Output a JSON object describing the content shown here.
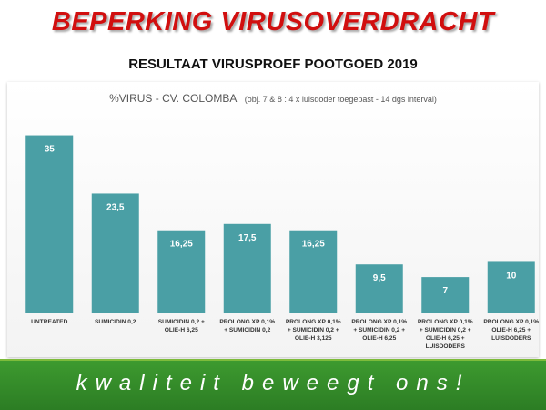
{
  "header": {
    "title": "BEPERKING VIRUSOVERDRACHT",
    "subtitle": "RESULTAAT VIRUSPROEF POOTGOED 2019"
  },
  "footer": {
    "slogan": "kwaliteit beweegt ons!"
  },
  "colors": {
    "title": "#d10f0f",
    "bar": "#4a9fa5",
    "footer_green": "#3d9a2f"
  },
  "chart_data": {
    "type": "bar",
    "title": "%VIRUS - CV. COLOMBA",
    "title_note": "(obj. 7 & 8 : 4 x luisdoder toegepast - 14 dgs interval)",
    "xlabel": "",
    "ylabel": "",
    "ylim": [
      0,
      36
    ],
    "grid": false,
    "categories": [
      [
        "UNTREATED"
      ],
      [
        "SUMICIDIN 0,2"
      ],
      [
        "SUMICIDIN 0,2 +",
        "OLIE-H 6,25"
      ],
      [
        "PROLONG XP 0,1%",
        "+ SUMICIDIN 0,2"
      ],
      [
        "PROLONG XP 0,1%",
        "+ SUMICIDIN 0,2 +",
        "OLIE-H 3,125"
      ],
      [
        "PROLONG XP 0,1%",
        "+ SUMICIDIN 0,2 +",
        "OLIE-H 6,25"
      ],
      [
        "PROLONG XP 0,1%",
        "+ SUMICIDIN 0,2 +",
        "OLIE-H 6,25 +",
        "LUISDODERS"
      ],
      [
        "PROLONG XP 0,1%",
        "OLIE-H 6,25 +",
        "LUISDODERS"
      ]
    ],
    "values": [
      35,
      23.5,
      16.25,
      17.5,
      16.25,
      9.5,
      7,
      10
    ],
    "value_labels": [
      "35",
      "23,5",
      "16,25",
      "17,5",
      "16,25",
      "9,5",
      "7",
      "10"
    ]
  }
}
